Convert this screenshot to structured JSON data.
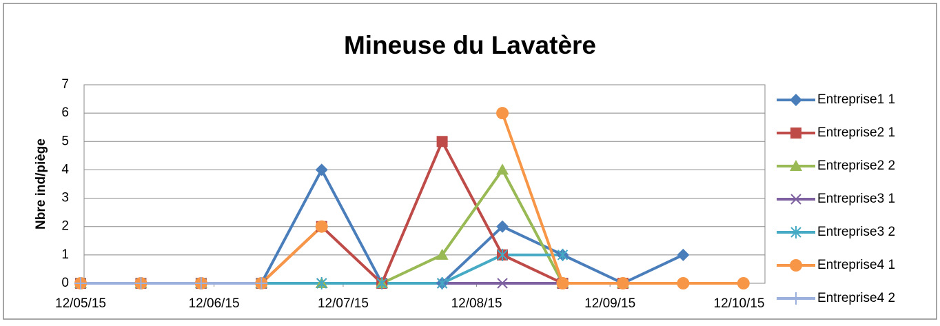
{
  "chart_data": {
    "type": "line",
    "title": "Mineuse du Lavatère",
    "y_label": "Nbre ind/piège",
    "x": [
      "2015-05-12",
      "2015-05-26",
      "2015-06-09",
      "2015-06-23",
      "2015-07-07",
      "2015-07-21",
      "2015-08-04",
      "2015-08-18",
      "2015-09-01",
      "2015-09-15",
      "2015-09-29",
      "2015-10-13"
    ],
    "xlim": [
      "2015-05-12",
      "2015-10-18"
    ],
    "xticks": [
      {
        "value": "2015-05-12",
        "label": "12/05/15"
      },
      {
        "value": "2015-06-12",
        "label": "12/06/15"
      },
      {
        "value": "2015-07-12",
        "label": "12/07/15"
      },
      {
        "value": "2015-08-12",
        "label": "12/08/15"
      },
      {
        "value": "2015-09-12",
        "label": "12/09/15"
      },
      {
        "value": "2015-10-12",
        "label": "12/10/15"
      }
    ],
    "ylim": [
      0,
      7
    ],
    "yticks": [
      0,
      1,
      2,
      3,
      4,
      5,
      6,
      7
    ],
    "grid": true,
    "legend": "right",
    "series": [
      {
        "name": "Entreprise1 1",
        "color": "#4a7ebb",
        "marker": "diamond",
        "values": [
          0,
          0,
          0,
          0,
          4,
          0,
          0,
          2,
          1,
          0,
          1,
          null
        ]
      },
      {
        "name": "Entreprise2 1",
        "color": "#be4b48",
        "marker": "square",
        "values": [
          0,
          0,
          0,
          0,
          2,
          0,
          5,
          1,
          0,
          0,
          null,
          null
        ]
      },
      {
        "name": "Entreprise2 2",
        "color": "#98b954",
        "marker": "triangle",
        "values": [
          0,
          0,
          0,
          0,
          0,
          0,
          1,
          4,
          0,
          0,
          null,
          null
        ]
      },
      {
        "name": "Entreprise3 1",
        "color": "#7d60a0",
        "marker": "x",
        "values": [
          0,
          0,
          0,
          0,
          0,
          0,
          0,
          0,
          0,
          null,
          null,
          null
        ]
      },
      {
        "name": "Entreprise3 2",
        "color": "#46aac5",
        "marker": "asterisk",
        "values": [
          0,
          0,
          0,
          0,
          0,
          0,
          0,
          1,
          1,
          null,
          null,
          null
        ]
      },
      {
        "name": "Entreprise4 1",
        "color": "#f79646",
        "marker": "circle",
        "values": [
          0,
          0,
          0,
          0,
          2,
          null,
          null,
          6,
          0,
          0,
          0,
          0
        ]
      },
      {
        "name": "Entreprise4 2",
        "color": "#9bb0dc",
        "marker": "plus",
        "values": [
          0,
          0,
          0,
          0,
          null,
          null,
          null,
          null,
          null,
          null,
          null,
          null
        ]
      }
    ]
  }
}
